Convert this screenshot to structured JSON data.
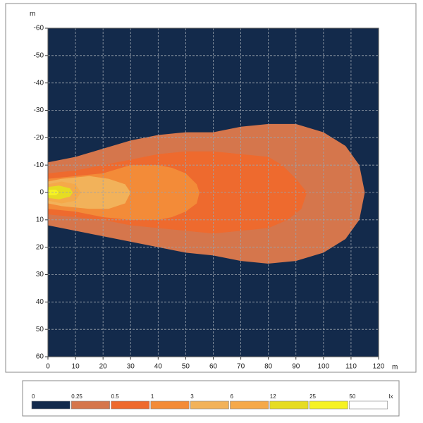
{
  "chart_data": {
    "type": "contour",
    "xlabel": "m",
    "ylabel": "m",
    "xlim": [
      0,
      120
    ],
    "ylim": [
      -60,
      60
    ],
    "y_inverted": true,
    "xticks": [
      0,
      10,
      20,
      30,
      40,
      50,
      60,
      70,
      80,
      90,
      100,
      110,
      120
    ],
    "yticks": [
      -60,
      -50,
      -40,
      -30,
      -20,
      -10,
      0,
      10,
      20,
      30,
      40,
      50,
      60
    ],
    "grid": true,
    "background": "#132a4b",
    "legend_unit": "lx",
    "levels": [
      {
        "value": 0,
        "color": "#132a4b"
      },
      {
        "value": 0.25,
        "color": "#d5764c",
        "region": {
          "x": [
            0,
            10,
            20,
            30,
            40,
            50,
            60,
            70,
            80,
            90,
            100,
            108,
            113,
            115,
            113,
            108,
            100,
            90,
            80,
            70,
            60,
            50,
            40,
            30,
            20,
            10,
            0
          ],
          "y": [
            -11,
            -13,
            -16,
            -19,
            -21,
            -22,
            -22,
            -24,
            -25,
            -25,
            -22,
            -17,
            -10,
            0,
            10,
            17,
            22,
            25,
            26,
            25,
            23,
            22,
            20,
            18,
            16,
            14,
            12
          ]
        }
      },
      {
        "value": 0.5,
        "color": "#ee6a2e",
        "region": {
          "x": [
            0,
            10,
            20,
            30,
            40,
            50,
            60,
            70,
            80,
            85,
            90,
            94,
            92,
            87,
            80,
            70,
            60,
            50,
            40,
            30,
            20,
            10,
            0
          ],
          "y": [
            -7,
            -8,
            -10,
            -12,
            -14,
            -15,
            -15,
            -14,
            -13,
            -10,
            -5,
            0,
            6,
            10,
            13,
            14,
            15,
            14,
            13,
            12,
            10,
            9,
            8
          ]
        }
      },
      {
        "value": 1,
        "color": "#f38b38",
        "region": {
          "x": [
            0,
            10,
            20,
            30,
            40,
            45,
            50,
            54,
            55,
            54,
            50,
            45,
            40,
            30,
            20,
            10,
            0
          ],
          "y": [
            -5,
            -6,
            -7,
            -10,
            -10,
            -9,
            -7,
            -3,
            0,
            4,
            7,
            9,
            10,
            10,
            9,
            7,
            6
          ]
        }
      },
      {
        "value": 3,
        "color": "#f2b25a",
        "region": {
          "x": [
            0,
            5,
            15,
            22,
            28,
            30,
            28,
            22,
            15,
            5,
            0
          ],
          "y": [
            -4,
            -5,
            -6,
            -5,
            -3,
            0,
            4,
            6,
            6,
            5,
            4
          ]
        }
      },
      {
        "value": 6,
        "color": "#f5a94a",
        "region": {
          "x": [
            0,
            5,
            10,
            12,
            10,
            5,
            0
          ],
          "y": [
            -3,
            -4,
            -3,
            0,
            3,
            4,
            3
          ]
        }
      },
      {
        "value": 12,
        "color": "#e6dc22",
        "region": {
          "x": [
            0,
            4,
            8,
            9,
            8,
            4,
            0
          ],
          "y": [
            -2,
            -2.5,
            -1.5,
            0,
            1.5,
            2.5,
            2
          ]
        }
      },
      {
        "value": 25,
        "color": "#f6f224",
        "region": {
          "x": [
            0,
            3,
            4,
            3,
            0
          ],
          "y": [
            -1,
            -1,
            0,
            1,
            1
          ]
        }
      },
      {
        "value": 50,
        "color": "#ffffff"
      }
    ]
  }
}
